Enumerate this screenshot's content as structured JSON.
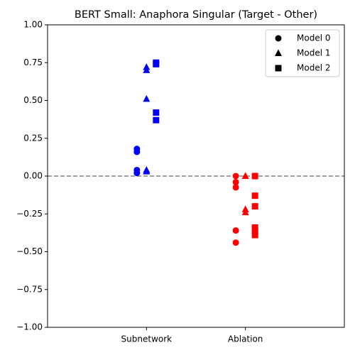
{
  "chart_data": {
    "type": "scatter",
    "title": "BERT Small: Anaphora Singular (Target - Other)",
    "categories": [
      "Subnetwork",
      "Ablation"
    ],
    "category_colors": [
      "#0000ff",
      "#ff0000"
    ],
    "series": [
      {
        "name": "Model 0",
        "marker": "circle",
        "values": [
          [
            0.18,
            0.16,
            0.04,
            0.02
          ],
          [
            0.0,
            -0.04,
            -0.075,
            -0.36,
            -0.44
          ]
        ]
      },
      {
        "name": "Model 1",
        "marker": "triangle",
        "values": [
          [
            0.72,
            0.7,
            0.51,
            0.04,
            0.03
          ],
          [
            0.0,
            0.0,
            -0.22,
            -0.24
          ]
        ]
      },
      {
        "name": "Model 2",
        "marker": "square",
        "values": [
          [
            0.75,
            0.74,
            0.42,
            0.37
          ],
          [
            0.0,
            -0.13,
            -0.2,
            -0.34,
            -0.37,
            -0.39
          ]
        ]
      }
    ],
    "ylim": [
      -1.0,
      1.0
    ],
    "yticks": [
      {
        "value": -1.0,
        "label": "−1.00"
      },
      {
        "value": -0.75,
        "label": "−0.75"
      },
      {
        "value": -0.5,
        "label": "−0.50"
      },
      {
        "value": -0.25,
        "label": "−0.25"
      },
      {
        "value": 0.0,
        "label": "0.00"
      },
      {
        "value": 0.25,
        "label": "0.25"
      },
      {
        "value": 0.5,
        "label": "0.50"
      },
      {
        "value": 0.75,
        "label": "0.75"
      },
      {
        "value": 1.0,
        "label": "1.00"
      }
    ],
    "hline": 0.0,
    "hline_color": "#808080",
    "legend": "upper right"
  }
}
